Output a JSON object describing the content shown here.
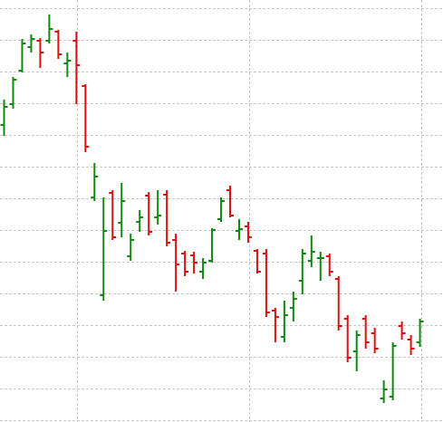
{
  "chart_data": {
    "type": "ohlc",
    "categories": [
      null,
      null,
      null,
      null,
      null,
      null,
      null,
      null,
      null,
      null,
      null,
      null,
      null,
      null,
      null,
      null,
      null,
      null,
      null,
      null,
      null,
      null,
      null,
      null,
      null,
      null,
      null,
      null,
      null,
      null,
      null,
      null,
      null,
      null,
      null,
      null,
      null,
      null,
      null,
      null,
      null,
      null,
      null,
      null,
      null,
      null,
      null
    ],
    "open": [
      328,
      351,
      388,
      414,
      421,
      421,
      431,
      396,
      421,
      371,
      248,
      140,
      253,
      220,
      183,
      221,
      250,
      226,
      251,
      201,
      186,
      184,
      166,
      178,
      224,
      256,
      211,
      216,
      189,
      186,
      123,
      94,
      126,
      156,
      178,
      181,
      183,
      158,
      114,
      78,
      114,
      98,
      26,
      28,
      106,
      91,
      88
    ],
    "high": [
      356,
      381,
      423,
      428,
      424,
      450,
      433,
      408,
      431,
      373,
      286,
      248,
      256,
      264,
      208,
      234,
      254,
      256,
      256,
      208,
      189,
      188,
      181,
      214,
      248,
      261,
      224,
      221,
      191,
      191,
      126,
      134,
      144,
      191,
      206,
      188,
      186,
      161,
      118,
      101,
      118,
      104,
      46,
      88,
      111,
      96,
      114
    ],
    "low": [
      316,
      346,
      386,
      408,
      391,
      418,
      401,
      381,
      351,
      298,
      244,
      134,
      201,
      204,
      178,
      210,
      206,
      218,
      194,
      144,
      161,
      164,
      158,
      176,
      221,
      226,
      201,
      198,
      164,
      116,
      88,
      88,
      111,
      141,
      171,
      156,
      161,
      101,
      66,
      56,
      81,
      76,
      21,
      24,
      91,
      74,
      83
    ],
    "close": [
      348,
      378,
      418,
      423,
      408,
      434,
      406,
      399,
      394,
      304,
      271,
      211,
      204,
      244,
      201,
      226,
      210,
      228,
      198,
      174,
      166,
      176,
      176,
      212,
      244,
      228,
      213,
      204,
      166,
      121,
      116,
      118,
      136,
      186,
      188,
      181,
      166,
      106,
      71,
      96,
      88,
      81,
      36,
      84,
      98,
      81,
      111
    ],
    "up_color": "#118811",
    "down_color": "#dd1111",
    "ylim": [
      0,
      466
    ],
    "yticks": [
      2,
      37,
      72,
      107,
      142,
      177,
      212,
      247,
      282,
      317,
      352,
      387,
      422,
      457
    ],
    "grid": true
  }
}
